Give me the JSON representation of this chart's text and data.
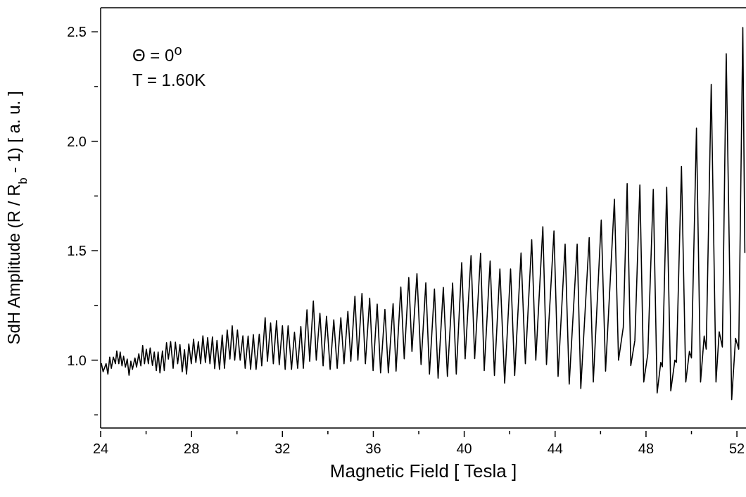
{
  "chart_data": {
    "type": "line",
    "xlabel": "Magnetic Field [ Tesla ]",
    "ylabel": "SdH Amplitude (R / R$_{b}$ - 1) [ a. u. ]",
    "annotations": [
      "Θ = 0$^{o}$",
      "T = 1.60K"
    ],
    "xlim": [
      24,
      52.4
    ],
    "xticks": [
      24,
      {
        "value": 26,
        "label": null
      },
      28,
      {
        "value": 30,
        "label": null
      },
      32,
      {
        "value": 34,
        "label": null
      },
      36,
      {
        "value": 38,
        "label": null
      },
      40,
      {
        "value": 42,
        "label": null
      },
      44,
      {
        "value": 46,
        "label": null
      },
      48,
      {
        "value": 50,
        "label": null
      },
      52
    ],
    "ylim": [
      0.69,
      2.61
    ],
    "yticks": [
      {
        "value": 0.75,
        "label": null
      },
      {
        "value": 1,
        "label": "1.0"
      },
      {
        "value": 1.25,
        "label": null
      },
      1.5,
      {
        "value": 1.75,
        "label": null
      },
      {
        "value": 2,
        "label": "2.0"
      },
      {
        "value": 2.25,
        "label": null
      },
      2.5
    ],
    "marker": "none",
    "line_style": "solid",
    "series": [
      {
        "color": "#000000",
        "x": [
          24.03,
          24.11,
          24.24,
          24.32,
          24.4,
          24.47,
          24.56,
          24.65,
          24.71,
          24.8,
          24.86,
          24.94,
          25.01,
          25.09,
          25.17,
          25.25,
          25.33,
          25.4,
          25.51,
          25.58,
          25.68,
          25.77,
          25.85,
          25.93,
          26.01,
          26.1,
          26.18,
          26.28,
          26.36,
          26.45,
          26.53,
          26.61,
          26.72,
          26.8,
          26.9,
          26.98,
          27.08,
          27.19,
          27.29,
          27.39,
          27.49,
          27.59,
          27.69,
          27.78,
          27.88,
          27.99,
          28.09,
          28.19,
          28.3,
          28.4,
          28.5,
          28.61,
          28.71,
          28.81,
          28.92,
          29.02,
          29.12,
          29.23,
          29.35,
          29.45,
          29.57,
          29.69,
          29.79,
          29.9,
          30.02,
          30.14,
          30.26,
          30.36,
          30.49,
          30.6,
          30.72,
          30.84,
          30.98,
          31.09,
          31.24,
          31.34,
          31.48,
          31.6,
          31.74,
          31.86,
          32.0,
          32.12,
          32.25,
          32.4,
          32.53,
          32.67,
          32.81,
          32.92,
          33.08,
          33.2,
          33.36,
          33.49,
          33.65,
          33.79,
          33.94,
          34.1,
          34.26,
          34.41,
          34.57,
          34.71,
          34.88,
          35.01,
          35.19,
          35.32,
          35.5,
          35.65,
          35.84,
          35.99,
          36.17,
          36.32,
          36.51,
          36.66,
          36.87,
          37.0,
          37.21,
          37.36,
          37.56,
          37.7,
          37.92,
          38.1,
          38.31,
          38.47,
          38.69,
          38.85,
          39.08,
          39.26,
          39.49,
          39.65,
          39.89,
          40.04,
          40.3,
          40.46,
          40.72,
          40.88,
          41.14,
          41.33,
          41.57,
          41.78,
          42.04,
          42.22,
          42.5,
          42.69,
          42.97,
          43.15,
          43.46,
          43.62,
          43.95,
          44.13,
          44.44,
          44.62,
          44.97,
          45.13,
          45.5,
          45.68,
          46.03,
          46.22,
          46.61,
          46.79,
          47.0,
          47.17,
          47.33,
          47.51,
          47.73,
          47.9,
          48.08,
          48.32,
          48.49,
          48.65,
          48.72,
          48.91,
          49.09,
          49.27,
          49.34,
          49.56,
          49.75,
          49.91,
          50.0,
          50.22,
          50.4,
          50.56,
          50.65,
          50.87,
          51.08,
          51.22,
          51.36,
          51.53,
          51.77,
          51.94,
          52.08,
          52.26,
          52.35
        ],
        "values": [
          0.986,
          0.947,
          0.984,
          0.936,
          1.014,
          0.963,
          1.014,
          0.984,
          1.042,
          0.984,
          1.037,
          0.974,
          1.018,
          0.968,
          1.005,
          0.931,
          0.995,
          0.958,
          1.01,
          0.968,
          1.029,
          0.974,
          1.067,
          0.984,
          1.05,
          0.984,
          1.056,
          0.976,
          1.037,
          0.952,
          1.037,
          0.942,
          1.042,
          0.952,
          1.08,
          1.005,
          1.085,
          0.963,
          1.082,
          0.984,
          1.071,
          0.947,
          1.048,
          0.936,
          1.074,
          0.984,
          1.096,
          0.989,
          1.085,
          0.984,
          1.111,
          0.989,
          1.103,
          0.984,
          1.106,
          0.961,
          1.09,
          0.958,
          1.114,
          0.963,
          1.138,
          1.005,
          1.157,
          1.0,
          1.138,
          1.0,
          1.111,
          0.963,
          1.11,
          0.958,
          1.117,
          0.958,
          1.118,
          0.974,
          1.194,
          0.995,
          1.17,
          0.984,
          1.18,
          0.979,
          1.157,
          0.958,
          1.157,
          0.958,
          1.127,
          0.963,
          1.154,
          0.963,
          1.23,
          0.995,
          1.27,
          1.0,
          1.214,
          0.974,
          1.2,
          0.958,
          1.184,
          0.963,
          1.194,
          0.984,
          1.223,
          0.995,
          1.292,
          1.0,
          1.305,
          0.984,
          1.283,
          0.952,
          1.256,
          0.942,
          1.232,
          0.942,
          1.258,
          0.95,
          1.334,
          1.006,
          1.377,
          1.04,
          1.395,
          0.98,
          1.353,
          0.936,
          1.325,
          0.918,
          1.332,
          0.926,
          1.352,
          0.936,
          1.446,
          1.006,
          1.478,
          1.007,
          1.488,
          0.952,
          1.453,
          0.93,
          1.417,
          0.895,
          1.417,
          0.93,
          1.49,
          0.984,
          1.55,
          1.0,
          1.61,
          0.98,
          1.59,
          0.926,
          1.53,
          0.89,
          1.53,
          0.87,
          1.56,
          0.9,
          1.64,
          0.95,
          1.735,
          1.0,
          1.15,
          1.807,
          0.975,
          1.09,
          1.8,
          0.9,
          1.03,
          1.78,
          0.85,
          0.99,
          0.97,
          1.79,
          0.86,
          1.0,
          0.99,
          1.885,
          0.9,
          1.04,
          1.01,
          2.06,
          0.9,
          1.11,
          1.05,
          2.26,
          0.9,
          1.13,
          1.06,
          2.4,
          0.82,
          1.1,
          1.05,
          2.52,
          1.49
        ]
      }
    ]
  }
}
